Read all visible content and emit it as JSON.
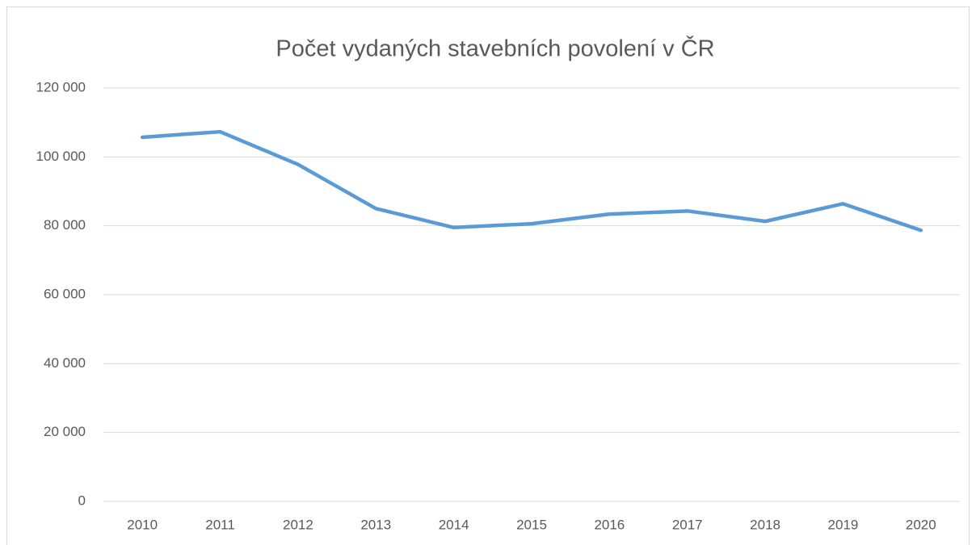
{
  "chart_data": {
    "type": "line",
    "title": "Počet vydaných stavebních povolení v ČR",
    "categories": [
      "2010",
      "2011",
      "2012",
      "2013",
      "2014",
      "2015",
      "2016",
      "2017",
      "2018",
      "2019",
      "2020"
    ],
    "series": [
      {
        "name": "Počet vydaných stavebních povolení",
        "color": "#5b9bd5",
        "values": [
          105700,
          107300,
          97800,
          85000,
          79500,
          80600,
          83400,
          84300,
          81300,
          86400,
          78700
        ]
      }
    ],
    "ylim": [
      0,
      120000
    ],
    "yticks": [
      0,
      {
        "value": 20000,
        "label": "20 000"
      },
      {
        "value": 40000,
        "label": "40 000"
      },
      {
        "value": 60000,
        "label": "60 000"
      },
      {
        "value": 80000,
        "label": "80 000"
      },
      {
        "value": 100000,
        "label": "100 000"
      },
      {
        "value": 120000,
        "label": "120 000"
      }
    ],
    "grid": true
  }
}
